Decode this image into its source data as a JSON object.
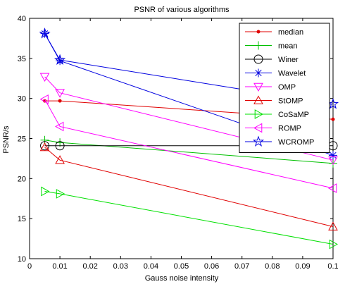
{
  "chart_data": {
    "type": "line",
    "title": "PSNR of various algorithms",
    "xlabel": "Gauss noise intensity",
    "ylabel": "PSNR/s",
    "xlim": [
      0,
      0.1
    ],
    "ylim": [
      10,
      40
    ],
    "xticks": [
      "0",
      "0.01",
      "0.02",
      "0.03",
      "0.04",
      "0.05",
      "0.06",
      "0.07",
      "0.08",
      "0.09",
      "0.1"
    ],
    "yticks": [
      "10",
      "15",
      "20",
      "25",
      "30",
      "35",
      "40"
    ],
    "grid": false,
    "legend_position": "top-right",
    "series": [
      {
        "name": "median",
        "color": "#e00000",
        "marker": "point",
        "x": [
          0.005,
          0.01,
          0.1
        ],
        "y": [
          29.7,
          29.7,
          27.4
        ]
      },
      {
        "name": "mean",
        "color": "#00c000",
        "marker": "plus",
        "x": [
          0.005,
          0.01,
          0.1
        ],
        "y": [
          24.8,
          24.5,
          21.9
        ]
      },
      {
        "name": "Winer",
        "color": "#000000",
        "marker": "circle",
        "x": [
          0.005,
          0.01,
          0.1
        ],
        "y": [
          24.1,
          24.1,
          24.1
        ]
      },
      {
        "name": "Wavelet",
        "color": "#0000e0",
        "marker": "asterisk",
        "x": [
          0.005,
          0.01,
          0.1
        ],
        "y": [
          38.1,
          34.7,
          22.9
        ]
      },
      {
        "name": "OMP",
        "color": "#ff00ff",
        "marker": "triangle-down",
        "x": [
          0.005,
          0.01,
          0.1
        ],
        "y": [
          32.7,
          30.7,
          22.3
        ]
      },
      {
        "name": "StOMP",
        "color": "#e00000",
        "marker": "triangle-up",
        "x": [
          0.005,
          0.01,
          0.1
        ],
        "y": [
          23.9,
          22.3,
          14.0
        ]
      },
      {
        "name": "CoSaMP",
        "color": "#00e000",
        "marker": "triangle-right",
        "x": [
          0.005,
          0.01,
          0.1
        ],
        "y": [
          18.4,
          18.1,
          11.8
        ]
      },
      {
        "name": "ROMP",
        "color": "#ff00ff",
        "marker": "triangle-left",
        "x": [
          0.005,
          0.01,
          0.1
        ],
        "y": [
          29.9,
          26.5,
          18.8
        ]
      },
      {
        "name": "WCROMP",
        "color": "#0000e0",
        "marker": "pentagram",
        "x": [
          0.005,
          0.01,
          0.1
        ],
        "y": [
          38.1,
          34.8,
          29.3
        ]
      }
    ]
  }
}
